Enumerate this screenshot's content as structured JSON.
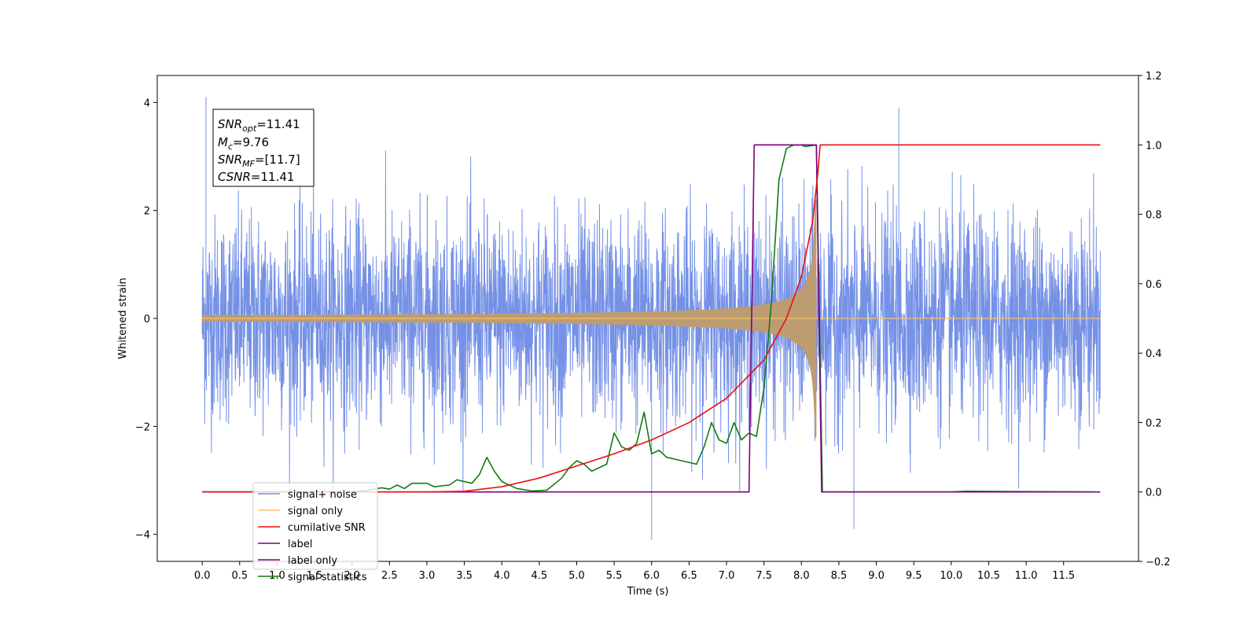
{
  "chart_data": {
    "type": "line",
    "xlabel": "Time (s)",
    "ylabel": "Whitened strain",
    "xlim": [
      -0.6,
      12.5
    ],
    "ylim_left": [
      -4.5,
      4.5
    ],
    "ylim_right": [
      -0.2,
      1.2
    ],
    "x_ticks": [
      0.0,
      0.5,
      1.0,
      1.5,
      2.0,
      2.5,
      3.0,
      3.5,
      4.0,
      4.5,
      5.0,
      5.5,
      6.0,
      6.5,
      7.0,
      7.5,
      8.0,
      8.5,
      9.0,
      9.5,
      10.0,
      10.5,
      11.0,
      11.5
    ],
    "x_tick_labels": [
      "0.0",
      "0.5",
      "1.0",
      "1.5",
      "2.0",
      "2.5",
      "3.0",
      "3.5",
      "4.0",
      "4.5",
      "5.0",
      "5.5",
      "6.0",
      "6.5",
      "7.0",
      "7.5",
      "8.0",
      "8.5",
      "9.0",
      "9.5",
      "10.0",
      "10.5",
      "11.0",
      "11.5"
    ],
    "y_left_ticks": [
      -4,
      -2,
      0,
      2,
      4
    ],
    "y_left_tick_labels": [
      "−4",
      "−2",
      "0",
      "2",
      "4"
    ],
    "y_right_ticks": [
      -0.2,
      0.0,
      0.2,
      0.4,
      0.6,
      0.8,
      1.0,
      1.2
    ],
    "y_right_tick_labels": [
      "−0.2",
      "0.0",
      "0.2",
      "0.4",
      "0.6",
      "0.8",
      "1.0",
      "1.2"
    ],
    "grid": false,
    "legend_position": "lower-left",
    "annotation": {
      "snr_opt": "=11.41",
      "mc": "=9.76",
      "snr_mf": "=[11.7]",
      "csnr": "=11.41"
    },
    "series": [
      {
        "name": "signal+ noise",
        "axis": "left",
        "color": "#7591e6",
        "x_range": [
          0.0,
          11.99
        ],
        "peak_labels": [
          [
            0.05,
            4.1
          ],
          [
            6.0,
            -4.1
          ],
          [
            8.7,
            -3.9
          ],
          [
            9.3,
            3.9
          ]
        ]
      },
      {
        "name": "signal only",
        "axis": "left",
        "color": "#f5c36a",
        "chirp_start": 0.0,
        "merger_time": 8.2,
        "end_time": 11.99,
        "max_amplitude": 2.2
      },
      {
        "name": "cumilative SNR",
        "axis": "right",
        "color": "#e81010",
        "points": [
          [
            0.0,
            0.0
          ],
          [
            2.0,
            0.0
          ],
          [
            3.0,
            0.0
          ],
          [
            3.5,
            0.002
          ],
          [
            4.0,
            0.015
          ],
          [
            4.5,
            0.04
          ],
          [
            5.0,
            0.075
          ],
          [
            5.5,
            0.11
          ],
          [
            6.0,
            0.15
          ],
          [
            6.5,
            0.2
          ],
          [
            7.0,
            0.27
          ],
          [
            7.5,
            0.38
          ],
          [
            7.8,
            0.5
          ],
          [
            8.0,
            0.62
          ],
          [
            8.15,
            0.78
          ],
          [
            8.22,
            0.92
          ],
          [
            8.25,
            1.0
          ],
          [
            11.99,
            1.0
          ]
        ]
      },
      {
        "name": "label",
        "axis": "right",
        "color": "#7f007f",
        "points": [
          [
            0.0,
            0.0
          ],
          [
            7.3,
            0.0
          ],
          [
            7.37,
            1.0
          ],
          [
            8.2,
            1.0
          ],
          [
            8.27,
            0.0
          ],
          [
            11.99,
            0.0
          ]
        ]
      },
      {
        "name": "label only",
        "axis": "right",
        "color": "#7f007f",
        "hidden": true,
        "points": []
      },
      {
        "name": "signal statistics",
        "axis": "right",
        "color": "#127b12",
        "points": [
          [
            0.0,
            0.0
          ],
          [
            1.0,
            0.0
          ],
          [
            2.0,
            0.0
          ],
          [
            2.2,
            0.005
          ],
          [
            2.4,
            0.012
          ],
          [
            2.5,
            0.008
          ],
          [
            2.6,
            0.02
          ],
          [
            2.7,
            0.01
          ],
          [
            2.8,
            0.025
          ],
          [
            3.0,
            0.025
          ],
          [
            3.1,
            0.015
          ],
          [
            3.3,
            0.02
          ],
          [
            3.4,
            0.035
          ],
          [
            3.6,
            0.025
          ],
          [
            3.7,
            0.05
          ],
          [
            3.8,
            0.1
          ],
          [
            3.9,
            0.06
          ],
          [
            4.0,
            0.03
          ],
          [
            4.2,
            0.01
          ],
          [
            4.4,
            0.003
          ],
          [
            4.6,
            0.005
          ],
          [
            4.8,
            0.04
          ],
          [
            4.9,
            0.07
          ],
          [
            5.0,
            0.09
          ],
          [
            5.1,
            0.08
          ],
          [
            5.2,
            0.06
          ],
          [
            5.4,
            0.08
          ],
          [
            5.5,
            0.17
          ],
          [
            5.6,
            0.13
          ],
          [
            5.7,
            0.12
          ],
          [
            5.8,
            0.14
          ],
          [
            5.9,
            0.23
          ],
          [
            6.0,
            0.11
          ],
          [
            6.1,
            0.12
          ],
          [
            6.2,
            0.1
          ],
          [
            6.4,
            0.09
          ],
          [
            6.6,
            0.08
          ],
          [
            6.7,
            0.13
          ],
          [
            6.8,
            0.2
          ],
          [
            6.9,
            0.15
          ],
          [
            7.0,
            0.14
          ],
          [
            7.1,
            0.2
          ],
          [
            7.2,
            0.15
          ],
          [
            7.3,
            0.17
          ],
          [
            7.4,
            0.16
          ],
          [
            7.5,
            0.3
          ],
          [
            7.6,
            0.55
          ],
          [
            7.7,
            0.9
          ],
          [
            7.8,
            0.99
          ],
          [
            7.9,
            1.0
          ],
          [
            8.0,
            1.0
          ],
          [
            8.05,
            0.995
          ],
          [
            8.2,
            1.0
          ],
          [
            8.28,
            0.0
          ],
          [
            8.4,
            0.0
          ],
          [
            10.0,
            0.0
          ],
          [
            10.2,
            0.002
          ],
          [
            11.9,
            0.0
          ]
        ]
      }
    ]
  }
}
